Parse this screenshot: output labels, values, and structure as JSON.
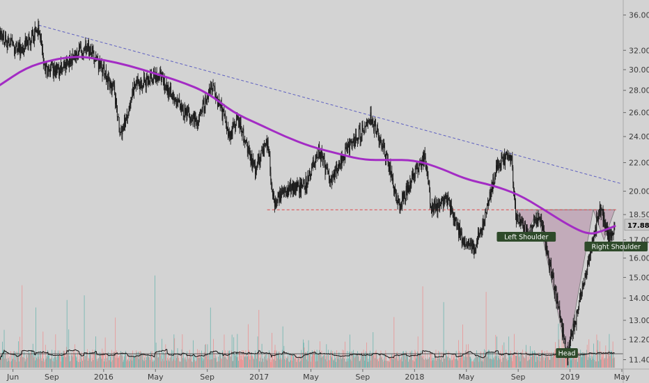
{
  "chart_data": {
    "type": "candlestick",
    "price_axis": {
      "ticks": [
        "11.40",
        "12.20",
        "13.00",
        "14.00",
        "15.00",
        "16.00",
        "17.00",
        "18.50",
        "20.00",
        "22.00",
        "24.00",
        "26.00",
        "28.00",
        "30.00",
        "32.00",
        "36.00"
      ],
      "scale": "log",
      "ylim": [
        11.1,
        37.5
      ]
    },
    "time_axis": {
      "ticks": [
        "Jun",
        "Sep",
        "2016",
        "May",
        "Sep",
        "2017",
        "May",
        "Sep",
        "2018",
        "May",
        "Sep",
        "2019",
        "May"
      ],
      "range": [
        "2015-05",
        "2019-05"
      ]
    },
    "current_price": "17.88",
    "price_path": [
      [
        "2015-05-01",
        33.5
      ],
      [
        "2015-06-15",
        32.0
      ],
      [
        "2015-08-01",
        34.3
      ],
      [
        "2015-08-15",
        30.0
      ],
      [
        "2015-09-20",
        30.0
      ],
      [
        "2015-10-30",
        31.5
      ],
      [
        "2015-11-20",
        32.5
      ],
      [
        "2015-12-15",
        31.0
      ],
      [
        "2016-01-25",
        28.0
      ],
      [
        "2016-02-10",
        24.0
      ],
      [
        "2016-03-15",
        28.5
      ],
      [
        "2016-05-10",
        29.5
      ],
      [
        "2016-06-28",
        26.5
      ],
      [
        "2016-08-10",
        25.2
      ],
      [
        "2016-09-10",
        28.5
      ],
      [
        "2016-10-25",
        24.0
      ],
      [
        "2016-11-10",
        25.5
      ],
      [
        "2016-12-20",
        21.5
      ],
      [
        "2017-01-20",
        23.5
      ],
      [
        "2017-02-05",
        19.2
      ],
      [
        "2017-03-01",
        20.0
      ],
      [
        "2017-04-20",
        20.5
      ],
      [
        "2017-05-20",
        23.0
      ],
      [
        "2017-06-15",
        20.5
      ],
      [
        "2017-07-25",
        23.0
      ],
      [
        "2017-08-20",
        24.0
      ],
      [
        "2017-09-20",
        25.5
      ],
      [
        "2017-10-25",
        22.5
      ],
      [
        "2017-11-25",
        19.0
      ],
      [
        "2017-12-20",
        20.5
      ],
      [
        "2018-01-25",
        22.5
      ],
      [
        "2018-02-10",
        18.8
      ],
      [
        "2018-03-15",
        19.5
      ],
      [
        "2018-04-20",
        17.2
      ],
      [
        "2018-05-20",
        16.5
      ],
      [
        "2018-06-15",
        18.5
      ],
      [
        "2018-07-15",
        22.0
      ],
      [
        "2018-08-15",
        22.5
      ],
      [
        "2018-08-25",
        18.5
      ],
      [
        "2018-09-25",
        17.3
      ],
      [
        "2018-10-20",
        18.5
      ],
      [
        "2018-11-15",
        15.5
      ],
      [
        "2018-12-24",
        11.5
      ],
      [
        "2019-01-20",
        13.5
      ],
      [
        "2019-02-15",
        15.8
      ],
      [
        "2019-03-10",
        19.0
      ],
      [
        "2019-04-01",
        17.0
      ],
      [
        "2019-04-15",
        17.88
      ]
    ],
    "moving_average": [
      [
        "2015-05-01",
        28.5
      ],
      [
        "2015-07-01",
        30.2
      ],
      [
        "2015-09-01",
        31.0
      ],
      [
        "2015-11-01",
        31.4
      ],
      [
        "2016-01-01",
        31.0
      ],
      [
        "2016-03-01",
        30.4
      ],
      [
        "2016-05-01",
        29.6
      ],
      [
        "2016-07-01",
        28.8
      ],
      [
        "2016-09-01",
        27.8
      ],
      [
        "2016-11-01",
        26.0
      ],
      [
        "2017-01-01",
        25.0
      ],
      [
        "2017-03-01",
        24.0
      ],
      [
        "2017-05-01",
        23.2
      ],
      [
        "2017-07-01",
        22.7
      ],
      [
        "2017-09-01",
        22.2
      ],
      [
        "2017-11-01",
        22.2
      ],
      [
        "2018-01-01",
        22.2
      ],
      [
        "2018-03-01",
        21.6
      ],
      [
        "2018-05-01",
        20.8
      ],
      [
        "2018-07-01",
        20.4
      ],
      [
        "2018-09-01",
        19.8
      ],
      [
        "2018-11-01",
        18.8
      ],
      [
        "2019-01-01",
        17.8
      ],
      [
        "2019-02-15",
        17.3
      ],
      [
        "2019-03-15",
        17.5
      ],
      [
        "2019-04-15",
        17.8
      ]
    ],
    "trendline": [
      [
        "2015-08-01",
        34.8
      ],
      [
        "2019-05-01",
        20.5
      ]
    ],
    "neckline": [
      [
        "2017-01-20",
        18.8
      ],
      [
        "2019-04-20",
        18.8
      ]
    ],
    "pattern": {
      "name": "inverse head and shoulders",
      "left_shoulder": [
        "2018-09-20",
        17.2
      ],
      "head": [
        "2018-12-24",
        11.5
      ],
      "right_shoulder": [
        "2019-03-20",
        17.0
      ]
    },
    "annotations": [
      "Left Shoulder",
      "Head",
      "Right Shoulder"
    ],
    "colors": {
      "background": "#d3d3d3",
      "candle": "#1a1a1a",
      "moving_average": "#a32cc4",
      "trendline": "#5d5fc0",
      "neckline": "#e0464a",
      "pattern_fill": "#b48aa6",
      "volume_up": "#5fb1aa",
      "volume_down": "#ee8a8a",
      "label_bg": "#2e4a2a",
      "current_price_bg": "#c9c9c9"
    }
  }
}
